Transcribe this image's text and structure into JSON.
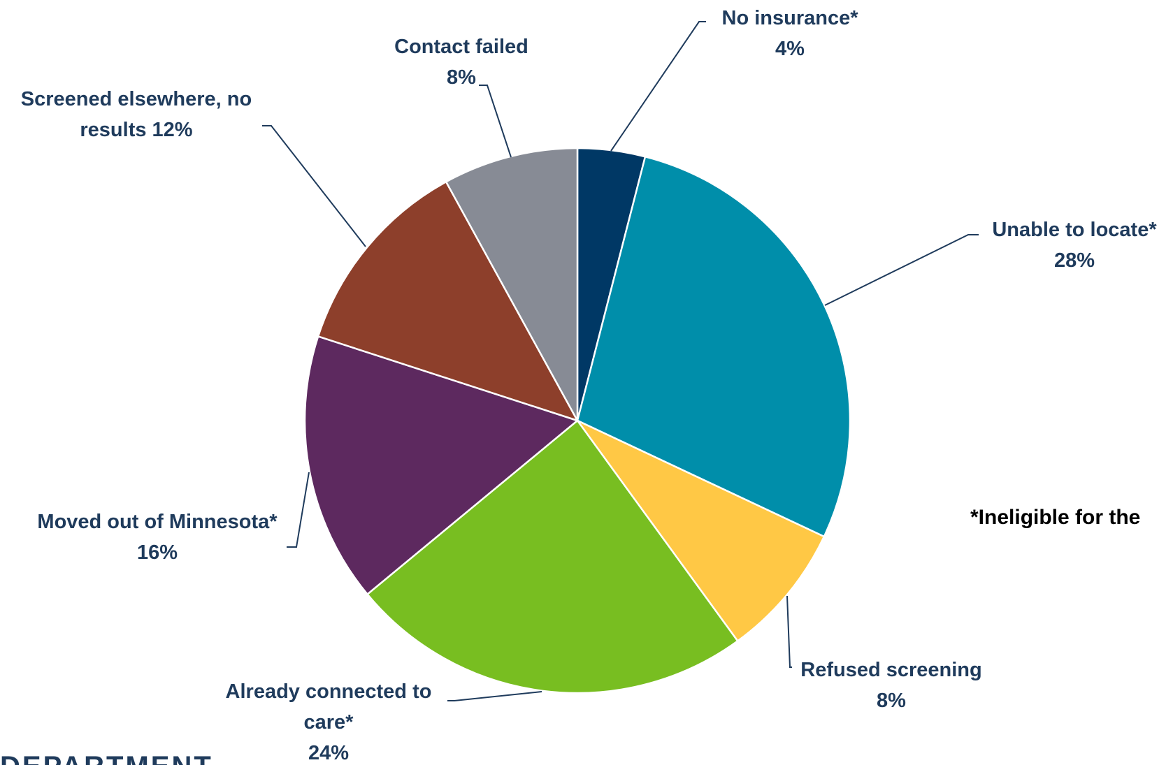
{
  "chart_data": {
    "type": "pie",
    "slices": [
      {
        "label": [
          "No insurance*",
          "4%"
        ],
        "value": 4,
        "color": "#003865"
      },
      {
        "label": [
          "Unable to locate*",
          "28%"
        ],
        "value": 28,
        "color": "#008EAA"
      },
      {
        "label": [
          "Refused screening",
          "8%"
        ],
        "value": 8,
        "color": "#FFC845"
      },
      {
        "label": [
          "Already connected to",
          "care*",
          "24%"
        ],
        "value": 24,
        "color": "#78BE21"
      },
      {
        "label": [
          "Moved out of Minnesota*",
          "16%"
        ],
        "value": 16,
        "color": "#5D295F"
      },
      {
        "label": [
          "Screened elsewhere, no",
          "results 12%"
        ],
        "value": 12,
        "color": "#8D3F2B"
      },
      {
        "label": [
          "Contact failed",
          "8%"
        ],
        "value": 8,
        "color": "#878B95"
      }
    ],
    "footnote": "*Ineligible for the",
    "footer_text": "DEPARTMENT"
  }
}
